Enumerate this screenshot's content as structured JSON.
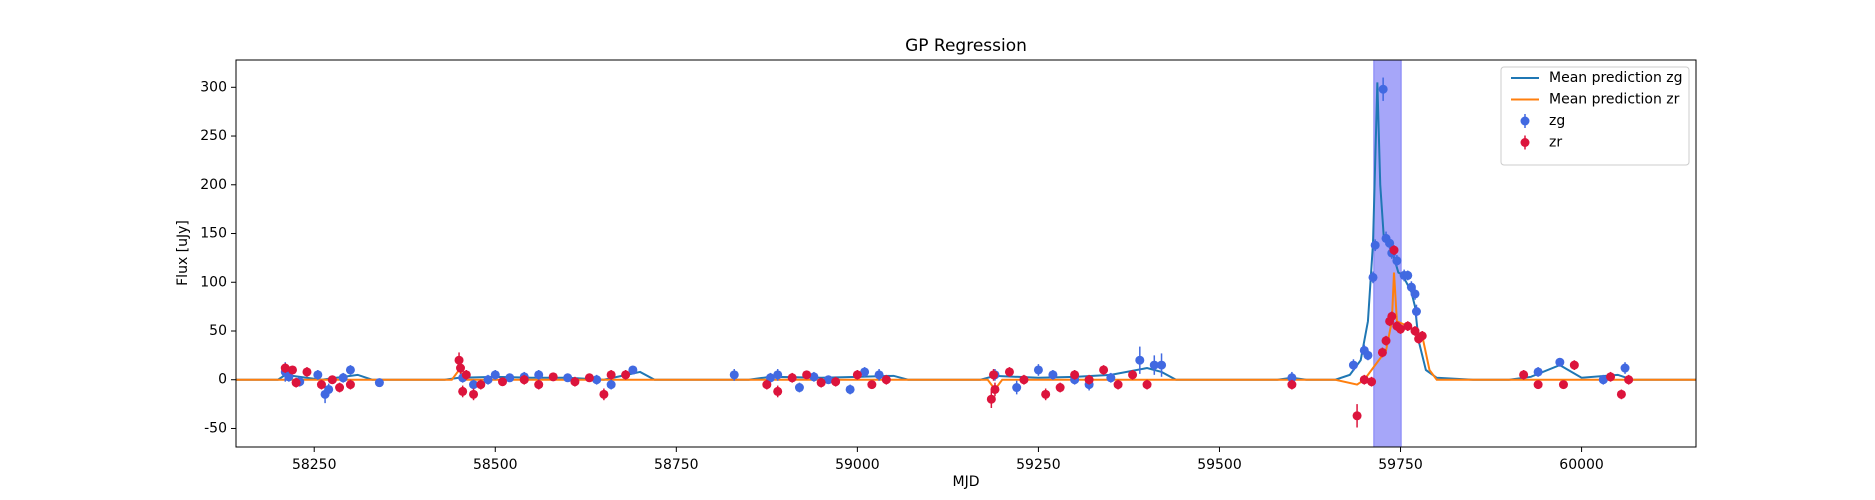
{
  "chart_data": {
    "type": "scatter",
    "title": "GP Regression",
    "xlabel": "MJD",
    "ylabel": "Flux [uJy]",
    "xlim": [
      58142,
      60158
    ],
    "ylim": [
      -69,
      328
    ],
    "xticks": [
      58250,
      58500,
      58750,
      59000,
      59250,
      59500,
      59750,
      60000
    ],
    "yticks": [
      -50,
      0,
      50,
      100,
      150,
      200,
      250,
      300
    ],
    "legend": "upper right",
    "span": {
      "x": [
        59713,
        59751
      ],
      "color": "#0000ee",
      "alpha": 0.35
    },
    "series": [
      {
        "name": "Mean prediction zg",
        "type": "line",
        "color": "#1f77b4",
        "x": [
          58142,
          58200,
          58210,
          58260,
          58310,
          58330,
          58430,
          58450,
          58500,
          58550,
          58600,
          58650,
          58700,
          58720,
          58850,
          58880,
          58950,
          59000,
          59050,
          59070,
          59170,
          59190,
          59250,
          59300,
          59350,
          59400,
          59420,
          59440,
          59580,
          59600,
          59620,
          59660,
          59680,
          59695,
          59705,
          59712,
          59718,
          59722,
          59727,
          59733,
          59740,
          59747,
          59752,
          59758,
          59765,
          59770,
          59775,
          59785,
          59800,
          59850,
          59900,
          59930,
          59970,
          60000,
          60050,
          60070,
          60158
        ],
        "values": [
          0,
          0,
          5,
          0,
          5,
          0,
          0,
          2,
          3,
          2,
          2,
          0,
          8,
          0,
          0,
          3,
          2,
          3,
          4,
          0,
          0,
          4,
          2,
          3,
          5,
          12,
          8,
          0,
          0,
          2,
          0,
          0,
          5,
          20,
          60,
          140,
          305,
          200,
          145,
          140,
          128,
          110,
          108,
          100,
          90,
          75,
          40,
          10,
          2,
          0,
          0,
          3,
          15,
          2,
          5,
          0,
          0
        ]
      },
      {
        "name": "Mean prediction zr",
        "type": "line",
        "color": "#ff7f0e",
        "x": [
          58142,
          58440,
          58450,
          58460,
          58700,
          59180,
          59190,
          59200,
          59660,
          59690,
          59700,
          59730,
          59738,
          59741,
          59745,
          59760,
          59780,
          59790,
          59800,
          60158
        ],
        "values": [
          0,
          0,
          10,
          0,
          0,
          0,
          -10,
          0,
          0,
          -5,
          0,
          30,
          60,
          110,
          60,
          55,
          45,
          10,
          0,
          0
        ]
      },
      {
        "name": "zg",
        "type": "errorbar",
        "color": "#4169e1",
        "x": [
          58210,
          58215,
          58230,
          58255,
          58265,
          58270,
          58290,
          58300,
          58340,
          58455,
          58470,
          58490,
          58500,
          58520,
          58540,
          58560,
          58600,
          58640,
          58660,
          58690,
          58830,
          58880,
          58890,
          58920,
          58940,
          58960,
          58990,
          59010,
          59030,
          59190,
          59220,
          59250,
          59270,
          59300,
          59320,
          59350,
          59390,
          59410,
          59420,
          59600,
          59685,
          59700,
          59705,
          59712,
          59715,
          59726,
          59730,
          59735,
          59738,
          59745,
          59755,
          59760,
          59765,
          59770,
          59772,
          59940,
          59970,
          60030,
          60060
        ],
        "values": [
          8,
          3,
          -2,
          5,
          -15,
          -10,
          2,
          10,
          -3,
          2,
          -5,
          0,
          5,
          2,
          3,
          5,
          2,
          0,
          -5,
          10,
          5,
          2,
          5,
          -8,
          3,
          0,
          -10,
          8,
          5,
          5,
          -8,
          10,
          5,
          0,
          -5,
          2,
          20,
          15,
          15,
          2,
          15,
          30,
          25,
          105,
          138,
          298,
          145,
          140,
          130,
          122,
          107,
          107,
          95,
          88,
          70,
          8,
          18,
          0,
          12
        ],
        "errors": [
          10,
          5,
          5,
          5,
          9,
          6,
          5,
          5,
          4,
          5,
          5,
          5,
          5,
          4,
          5,
          5,
          4,
          5,
          5,
          4,
          6,
          5,
          6,
          5,
          5,
          4,
          5,
          5,
          6,
          6,
          7,
          6,
          5,
          5,
          6,
          5,
          14,
          10,
          12,
          6,
          6,
          6,
          5,
          6,
          6,
          12,
          7,
          6,
          6,
          6,
          6,
          5,
          6,
          6,
          7,
          5,
          4,
          5,
          6
        ]
      },
      {
        "name": "zr",
        "type": "errorbar",
        "color": "#dc143c",
        "x": [
          58210,
          58220,
          58225,
          58240,
          58260,
          58275,
          58285,
          58300,
          58450,
          58452,
          58455,
          58460,
          58470,
          58480,
          58510,
          58540,
          58560,
          58580,
          58610,
          58630,
          58650,
          58660,
          58680,
          58875,
          58890,
          58910,
          58930,
          58950,
          58970,
          59000,
          59020,
          59040,
          59185,
          59188,
          59190,
          59210,
          59230,
          59260,
          59280,
          59300,
          59320,
          59340,
          59360,
          59380,
          59400,
          59600,
          59690,
          59700,
          59710,
          59725,
          59730,
          59735,
          59738,
          59741,
          59745,
          59750,
          59760,
          59770,
          59775,
          59780,
          59920,
          59940,
          59975,
          59990,
          60040,
          60055,
          60065
        ],
        "values": [
          12,
          10,
          -3,
          8,
          -5,
          0,
          -8,
          -5,
          20,
          12,
          -12,
          5,
          -15,
          -5,
          -2,
          0,
          -5,
          3,
          -2,
          2,
          -15,
          5,
          5,
          -5,
          -12,
          2,
          5,
          -3,
          -2,
          5,
          -5,
          0,
          -20,
          5,
          -10,
          8,
          0,
          -15,
          -8,
          5,
          0,
          10,
          -5,
          5,
          -5,
          -5,
          -37,
          0,
          -2,
          28,
          40,
          60,
          65,
          133,
          55,
          52,
          55,
          50,
          42,
          45,
          5,
          -5,
          -5,
          15,
          3,
          -15,
          0
        ],
        "errors": [
          5,
          4,
          5,
          5,
          5,
          4,
          5,
          5,
          8,
          6,
          6,
          5,
          6,
          5,
          4,
          5,
          5,
          4,
          5,
          4,
          6,
          5,
          5,
          5,
          6,
          5,
          4,
          5,
          5,
          5,
          4,
          5,
          9,
          6,
          7,
          5,
          5,
          6,
          5,
          5,
          5,
          5,
          5,
          5,
          5,
          5,
          12,
          5,
          5,
          5,
          5,
          5,
          5,
          5,
          5,
          5,
          5,
          5,
          5,
          5,
          5,
          4,
          4,
          5,
          5,
          5,
          5
        ]
      }
    ]
  }
}
